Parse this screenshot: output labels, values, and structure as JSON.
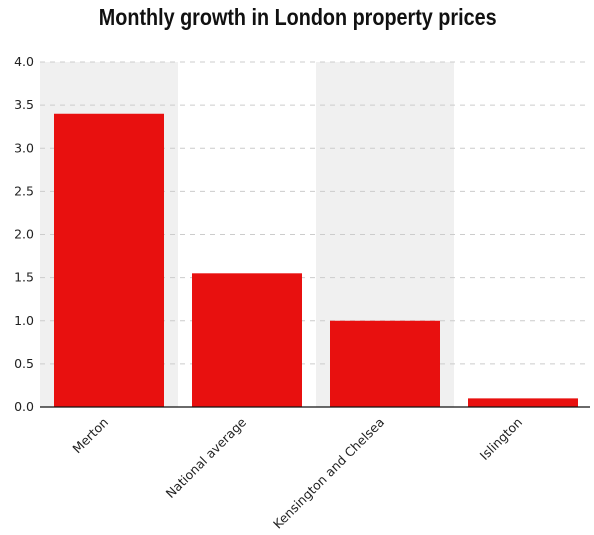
{
  "chart_data": {
    "type": "bar",
    "title": "Monthly growth in London property prices",
    "xlabel": "",
    "ylabel": "",
    "categories": [
      "Merton",
      "National average",
      "Kensington and Chelsea",
      "Islington"
    ],
    "values": [
      3.4,
      1.55,
      1.0,
      0.1
    ],
    "ylim": [
      0,
      4.0
    ],
    "yticks": [
      "0.0",
      "0.5",
      "1.0",
      "1.5",
      "2.0",
      "2.5",
      "3.0",
      "3.5",
      "4.0"
    ],
    "grid": true,
    "bar_color": "#e8100f",
    "band_color": "#f0f0f0",
    "grid_color": "#cccccc"
  }
}
